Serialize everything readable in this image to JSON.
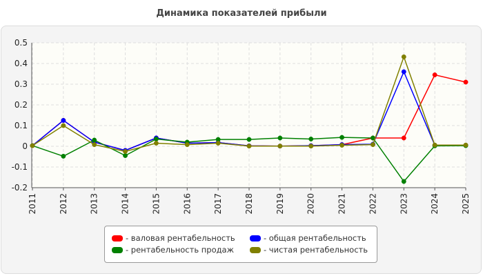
{
  "header": {
    "title": "Динамика показателей прибыли"
  },
  "colors": {
    "frame_bg": "#f4f4f4",
    "plot_bg": "#fdfdf8",
    "grid": "#dedede"
  },
  "chart_data": {
    "type": "line",
    "title": "Динамика показателей прибыли",
    "xlabel": "",
    "ylabel": "",
    "x": [
      "2011",
      "2012",
      "2013",
      "2014",
      "2015",
      "2016",
      "2017",
      "2018",
      "2019",
      "2020",
      "2021",
      "2022",
      "2023",
      "2024",
      "2025"
    ],
    "ylim": [
      -0.2,
      0.5
    ],
    "yticks": [
      -0.2,
      -0.1,
      0,
      0.1,
      0.2,
      0.3,
      0.4,
      0.5
    ],
    "ytick_labels": [
      "-0.2",
      "-0.1",
      "0",
      "0.1",
      "0.2",
      "0.3",
      "0.4",
      "0.5"
    ],
    "grid": true,
    "legend_position": "bottom",
    "series": [
      {
        "name": "- валовая рентабельность",
        "color": "#ff0000",
        "values": [
          0.003,
          0.125,
          0.02,
          -0.02,
          0.04,
          0.015,
          0.018,
          0.002,
          0.001,
          0.003,
          0.008,
          0.04,
          0.04,
          0.345,
          0.31
        ]
      },
      {
        "name": "- общая рентабельность",
        "color": "#0000ff",
        "values": [
          0.003,
          0.125,
          0.02,
          -0.02,
          0.04,
          0.015,
          0.018,
          0.002,
          0.001,
          0.003,
          0.008,
          0.01,
          0.36,
          0.005,
          0.005
        ]
      },
      {
        "name": "- рентабельность продаж",
        "color": "#008000",
        "values": [
          0.003,
          -0.048,
          0.03,
          -0.045,
          0.035,
          0.02,
          0.033,
          0.033,
          0.04,
          0.035,
          0.043,
          0.04,
          -0.17,
          0.002,
          0.003
        ]
      },
      {
        "name": "- чистая рентабельность",
        "color": "#808000",
        "values": [
          0.003,
          0.1,
          0.008,
          -0.025,
          0.015,
          0.008,
          0.015,
          0.001,
          0.001,
          0.001,
          0.005,
          0.008,
          0.432,
          0.006,
          0.006
        ]
      }
    ]
  }
}
